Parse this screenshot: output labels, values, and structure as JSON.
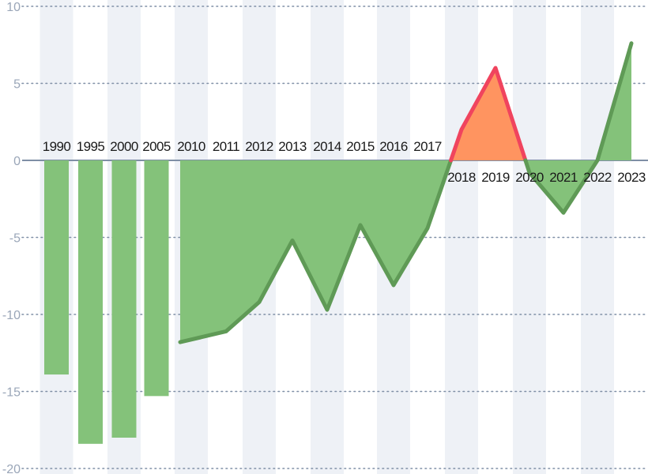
{
  "chart_data": {
    "type": "bar",
    "categories": [
      "1990",
      "1995",
      "2000",
      "2005",
      "2010",
      "2011",
      "2012",
      "2013",
      "2014",
      "2015",
      "2016",
      "2017",
      "2018",
      "2019",
      "2020",
      "2021",
      "2022",
      "2023"
    ],
    "bar_values": [
      -13.9,
      -18.4,
      -18.0,
      -15.3
    ],
    "line_values": [
      -11.8,
      -11.1,
      -9.2,
      -5.2,
      -9.7,
      -4.2,
      -8.1,
      -4.4,
      2.0,
      6.0,
      -0.8,
      -3.4,
      0.0,
      7.6
    ],
    "positive_segments": [
      {
        "from": 12,
        "to": 14
      },
      {
        "from": 16,
        "to": 17
      }
    ],
    "yticks": [
      10,
      5,
      0,
      -5,
      -10,
      -15,
      -20
    ],
    "ylim": [
      -20,
      10
    ],
    "grid": true,
    "colors": {
      "negative_fill": "#84c27a",
      "negative_line": "#5f9a56",
      "positive_fill": "#ff9460",
      "positive_line": "#f0445e",
      "band": "#eef1f6",
      "gridline": "#7f8fa6",
      "zero_line": "#7f8fa6",
      "ytick": "#9aa6b8",
      "xtick": "#1a1a1a"
    }
  }
}
